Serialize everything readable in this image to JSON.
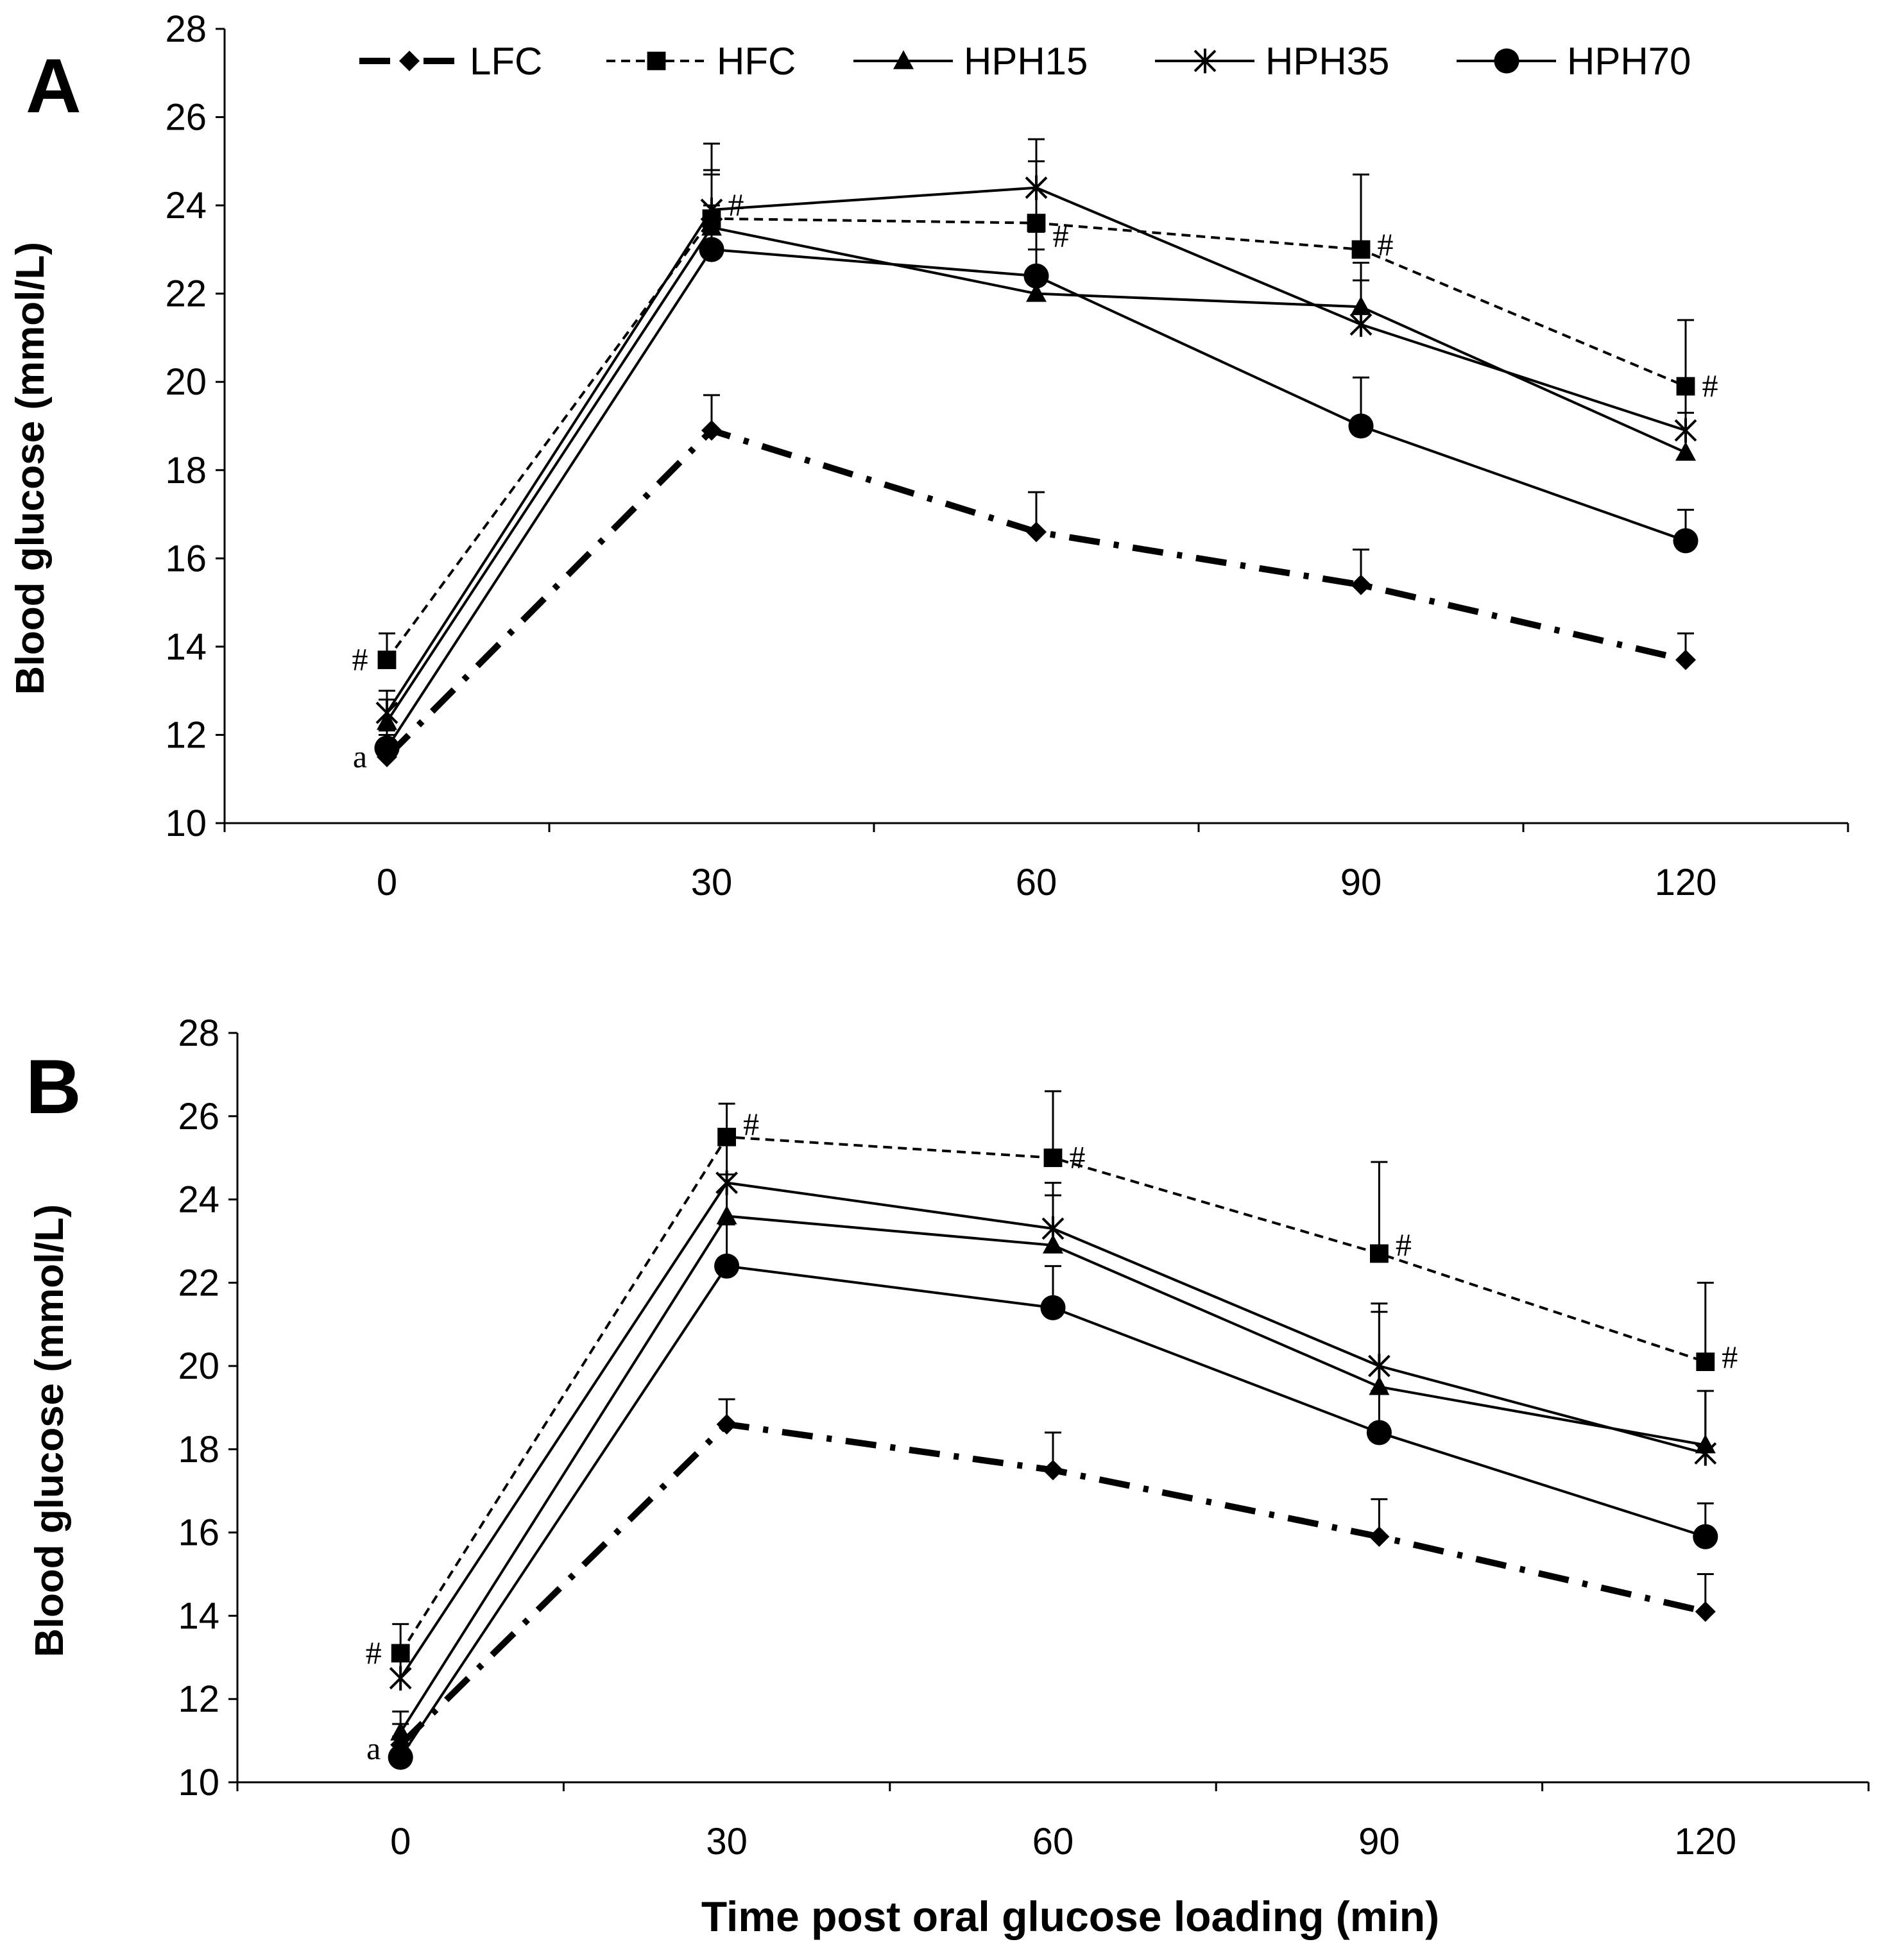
{
  "chart_data": [
    {
      "type": "line",
      "panel_label": "A",
      "ylabel": "Blood glucose (mmol/L)",
      "xlabel": "",
      "x": [
        0,
        30,
        60,
        90,
        120
      ],
      "xticks": [
        "0",
        "30",
        "60",
        "90",
        "120"
      ],
      "ylim": [
        10,
        28
      ],
      "yticks": [
        "10",
        "12",
        "14",
        "16",
        "18",
        "20",
        "22",
        "24",
        "26",
        "28"
      ],
      "legend_position": "top",
      "series": [
        {
          "name": "LFC",
          "marker": "diamond",
          "style": "dashdot",
          "values": [
            11.5,
            18.9,
            16.6,
            15.4,
            13.7
          ],
          "errors": [
            0.5,
            0.8,
            0.9,
            0.8,
            0.6
          ]
        },
        {
          "name": "HFC",
          "marker": "square",
          "style": "dashed",
          "values": [
            13.7,
            23.7,
            23.6,
            23.0,
            19.9
          ],
          "errors": [
            0.6,
            1.1,
            1.4,
            1.7,
            1.5
          ]
        },
        {
          "name": "HPH15",
          "marker": "triangle",
          "style": "solid",
          "values": [
            12.3,
            23.5,
            22.0,
            21.7,
            18.4
          ],
          "errors": [
            0.5,
            1.2,
            1.0,
            1.0,
            0.9
          ]
        },
        {
          "name": "HPH35",
          "marker": "star",
          "style": "solid",
          "values": [
            12.5,
            23.9,
            24.4,
            21.3,
            18.9
          ],
          "errors": [
            0.5,
            1.5,
            1.1,
            1.0,
            1.0
          ]
        },
        {
          "name": "HPH70",
          "marker": "circle",
          "style": "solid",
          "values": [
            11.7,
            23.0,
            22.4,
            19.0,
            16.4
          ],
          "errors": [
            0.4,
            1.0,
            1.0,
            1.1,
            0.7
          ]
        }
      ],
      "annotations": [
        {
          "text": "#",
          "x": 0,
          "y": 13.7,
          "side": "left"
        },
        {
          "text": "a",
          "x": 0,
          "y": 11.5,
          "side": "left"
        },
        {
          "text": "#",
          "x": 30,
          "y": 24.0,
          "side": "right"
        },
        {
          "text": "#",
          "x": 60,
          "y": 23.3,
          "side": "right"
        },
        {
          "text": "#",
          "x": 90,
          "y": 23.1,
          "side": "right"
        },
        {
          "text": "#",
          "x": 120,
          "y": 19.9,
          "side": "right"
        }
      ]
    },
    {
      "type": "line",
      "panel_label": "B",
      "ylabel": "Blood glucose (mmol/L)",
      "xlabel": "Time post oral glucose loading (min)",
      "x": [
        0,
        30,
        60,
        90,
        120
      ],
      "xticks": [
        "0",
        "30",
        "60",
        "90",
        "120"
      ],
      "ylim": [
        10,
        28
      ],
      "yticks": [
        "10",
        "12",
        "14",
        "16",
        "18",
        "20",
        "22",
        "24",
        "26",
        "28"
      ],
      "series": [
        {
          "name": "LFC",
          "marker": "diamond",
          "style": "dashdot",
          "values": [
            10.9,
            18.6,
            17.5,
            15.9,
            14.1
          ],
          "errors": [
            0.5,
            0.6,
            0.9,
            0.9,
            0.9
          ]
        },
        {
          "name": "HFC",
          "marker": "square",
          "style": "dashed",
          "values": [
            13.1,
            25.5,
            25.0,
            22.7,
            20.1
          ],
          "errors": [
            0.7,
            0.8,
            1.6,
            2.2,
            1.9
          ]
        },
        {
          "name": "HPH15",
          "marker": "triangle",
          "style": "solid",
          "values": [
            11.2,
            23.6,
            22.9,
            19.5,
            18.1
          ],
          "errors": [
            0.5,
            1.0,
            1.2,
            1.8,
            1.3
          ]
        },
        {
          "name": "HPH35",
          "marker": "star",
          "style": "solid",
          "values": [
            12.5,
            24.4,
            23.3,
            20.0,
            17.9
          ],
          "errors": [
            0.6,
            1.1,
            1.1,
            1.5,
            1.5
          ]
        },
        {
          "name": "HPH70",
          "marker": "circle",
          "style": "solid",
          "values": [
            10.6,
            22.4,
            21.4,
            18.4,
            15.9
          ],
          "errors": [
            0.5,
            1.0,
            1.0,
            1.0,
            0.8
          ]
        }
      ],
      "annotations": [
        {
          "text": "#",
          "x": 0,
          "y": 13.1,
          "side": "left"
        },
        {
          "text": "a",
          "x": 0,
          "y": 10.8,
          "side": "left"
        },
        {
          "text": "#",
          "x": 30,
          "y": 25.8,
          "side": "right"
        },
        {
          "text": "#",
          "x": 60,
          "y": 25.0,
          "side": "right"
        },
        {
          "text": "#",
          "x": 90,
          "y": 22.9,
          "side": "right"
        },
        {
          "text": "#",
          "x": 120,
          "y": 20.2,
          "side": "right"
        }
      ]
    }
  ]
}
